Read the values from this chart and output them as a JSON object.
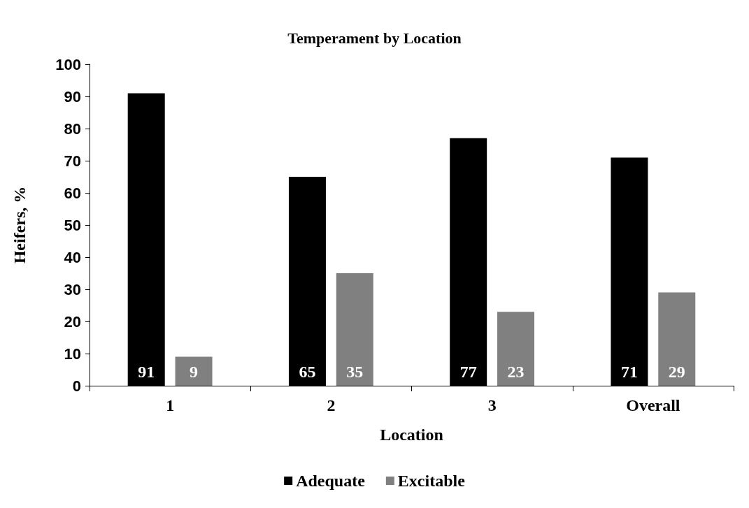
{
  "chart_data": {
    "type": "bar",
    "title": "Temperament by Location",
    "xlabel": "Location",
    "ylabel": "Heifers, %",
    "categories": [
      "1",
      "2",
      "3",
      "Overall"
    ],
    "series": [
      {
        "name": "Adequate",
        "color": "#000000",
        "values": [
          91,
          65,
          77,
          71
        ]
      },
      {
        "name": "Excitable",
        "color": "#808080",
        "values": [
          9,
          35,
          23,
          29
        ]
      }
    ],
    "ylim": [
      0,
      100
    ],
    "yticks": [
      0,
      10,
      20,
      30,
      40,
      50,
      60,
      70,
      80,
      90,
      100
    ],
    "grid": false,
    "legend": "bottom",
    "data_labels": true
  }
}
